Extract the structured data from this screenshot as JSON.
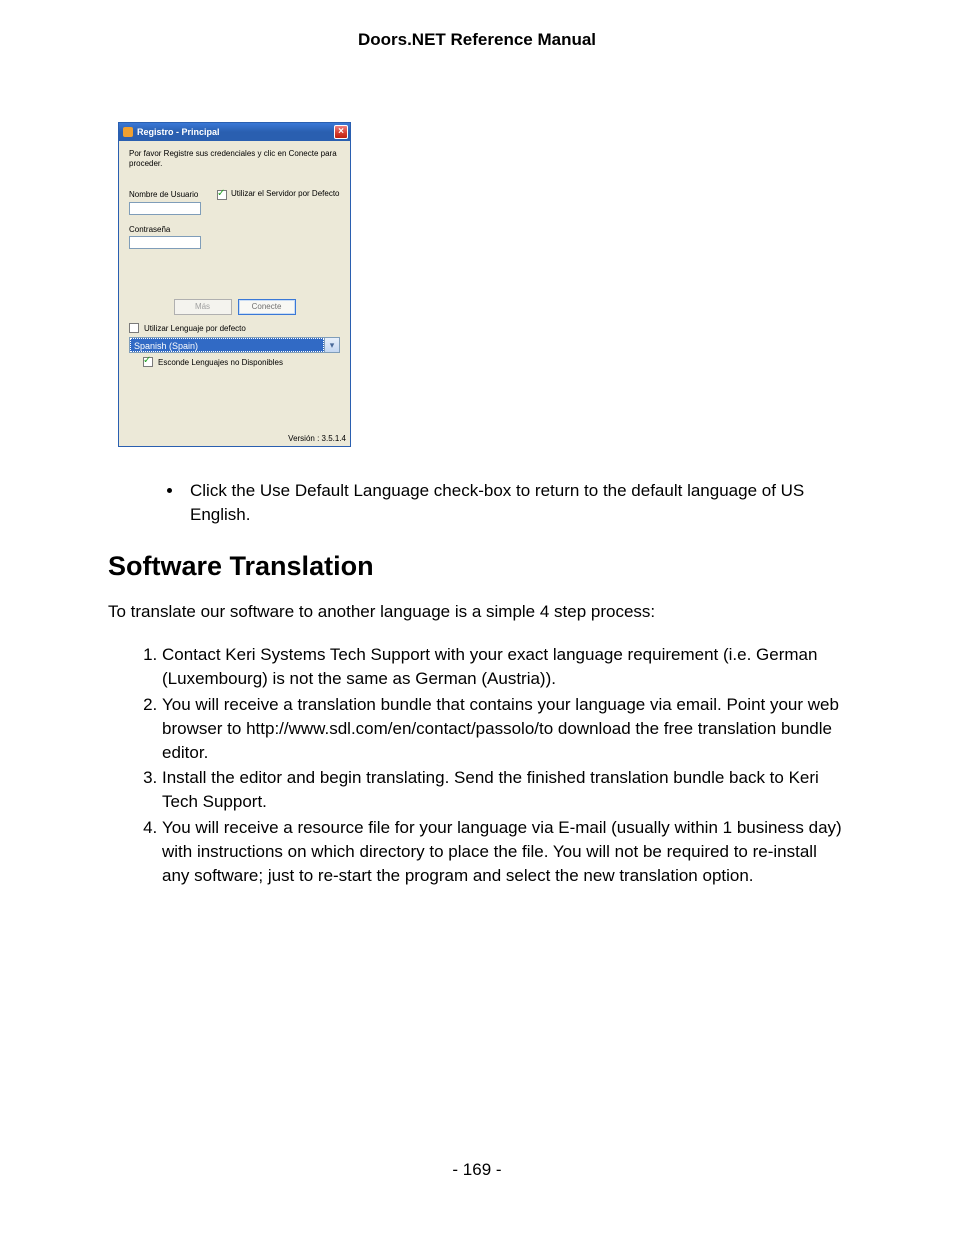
{
  "document": {
    "header": "Doors.NET Reference Manual",
    "page_number": "- 169 -"
  },
  "dialog": {
    "title": "Registro - Principal",
    "instruction": "Por favor Registre sus credenciales y clic en Conecte para proceder.",
    "username_label": "Nombre de Usuario",
    "default_server_label": "Utilizar el Servidor por Defecto",
    "default_server_checked": true,
    "password_label": "Contraseña",
    "btn_more": "Más",
    "btn_connect": "Conecte",
    "use_default_lang_label": "Utilizar Lenguaje por defecto",
    "use_default_lang_checked": false,
    "language_value": "Spanish (Spain)",
    "hide_unavailable_label": "Esconde Lenguajes no Disponibles",
    "hide_unavailable_checked": true,
    "version": "Versión : 3.5.1.4",
    "colors": {
      "titlebar_start": "#3a78d6",
      "titlebar_end": "#2a5fb0",
      "body_bg": "#ece9d8",
      "selection_bg": "#316ac5",
      "close_bg": "#d43a2a"
    }
  },
  "content": {
    "bullet": "Click the Use Default Language check-box to return to the default language of US English.",
    "section_title": "Software Translation",
    "intro": "To translate our software to another language is a simple 4 step process:",
    "steps": {
      "s1": "Contact Keri Systems Tech Support with your exact language requirement (i.e. German (Luxembourg) is not the same as German (Austria)).",
      "s2": "You will receive a translation bundle that contains your language via email. Point your web browser to http://www.sdl.com/en/contact/passolo/to download the free translation bundle editor.",
      "s3": "Install the editor and begin translating. Send the finished translation bundle back to Keri Tech Support.",
      "s4": "You will receive a resource file for your language via E-mail (usually within 1 business day) with instructions on which directory to place the file. You will not be required to re-install any software; just to re-start the program and select the new translation option."
    }
  }
}
